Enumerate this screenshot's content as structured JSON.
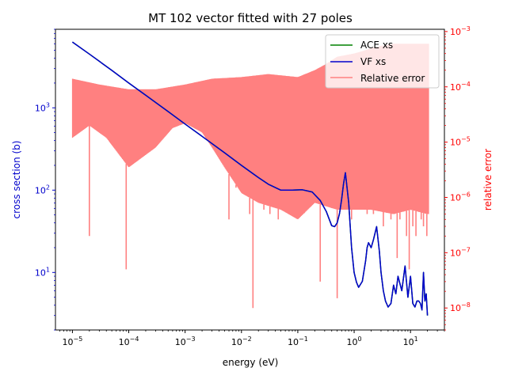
{
  "chart_data": {
    "type": "line",
    "title": "MT 102 vector fitted with 27 poles",
    "xlabel": "energy (eV)",
    "ylabel": "cross section (b)",
    "ylabel_right": "relative error",
    "xscale": "log",
    "yscale": "log",
    "yscale_right": "log",
    "xlim": [
      5e-06,
      40
    ],
    "ylim": [
      2.0,
      9000
    ],
    "ylim_right": [
      4e-09,
      0.0011
    ],
    "x_ticks": [
      {
        "value": 1e-05,
        "base": "10",
        "exp": "−5"
      },
      {
        "value": 0.0001,
        "base": "10",
        "exp": "−4"
      },
      {
        "value": 0.001,
        "base": "10",
        "exp": "−3"
      },
      {
        "value": 0.01,
        "base": "10",
        "exp": "−2"
      },
      {
        "value": 0.1,
        "base": "10",
        "exp": "−1"
      },
      {
        "value": 1,
        "base": "10",
        "exp": "0"
      },
      {
        "value": 10,
        "base": "10",
        "exp": "1"
      }
    ],
    "y_ticks": [
      {
        "value": 10,
        "base": "10",
        "exp": "1"
      },
      {
        "value": 100,
        "base": "10",
        "exp": "2"
      },
      {
        "value": 1000,
        "base": "10",
        "exp": "3"
      }
    ],
    "y_ticks_right": [
      {
        "value": 1e-08,
        "base": "10",
        "exp": "−8"
      },
      {
        "value": 1e-07,
        "base": "10",
        "exp": "−7"
      },
      {
        "value": 1e-06,
        "base": "10",
        "exp": "−6"
      },
      {
        "value": 1e-05,
        "base": "10",
        "exp": "−5"
      },
      {
        "value": 0.0001,
        "base": "10",
        "exp": "−4"
      },
      {
        "value": 0.001,
        "base": "10",
        "exp": "−3"
      }
    ],
    "legend_position": "top-right",
    "series": [
      {
        "name": "ACE xs",
        "axis": "left",
        "color": "#008000",
        "x": [
          1e-05,
          2e-05,
          5e-05,
          0.0001,
          0.0002,
          0.0005,
          0.001,
          0.002,
          0.005,
          0.01,
          0.02,
          0.03,
          0.05,
          0.08,
          0.12,
          0.18,
          0.25,
          0.32,
          0.4,
          0.45,
          0.5,
          0.55,
          0.6,
          0.65,
          0.7,
          0.8,
          0.9,
          1.0,
          1.1,
          1.2,
          1.4,
          1.6,
          1.7,
          1.8,
          2.0,
          2.2,
          2.5,
          2.8,
          3.0,
          3.3,
          3.6,
          4.0,
          4.5,
          5.0,
          5.5,
          6.0,
          7.0,
          8.0,
          9.0,
          10.0,
          11.0,
          12.0,
          13.0,
          14.0,
          15.0,
          16.0,
          17.0,
          18.0,
          19.0,
          20.0
        ],
        "y": [
          6300,
          4500,
          2850,
          2000,
          1420,
          900,
          635,
          450,
          285,
          200,
          142,
          118,
          100,
          100,
          101,
          95,
          75,
          55,
          37,
          36,
          40,
          52,
          78,
          120,
          163,
          70,
          20,
          10,
          7.6,
          6.6,
          7.8,
          14,
          20,
          23,
          20,
          25,
          36,
          18,
          10,
          6,
          4.5,
          3.8,
          4.2,
          7,
          5.5,
          9,
          6,
          12,
          5,
          9,
          4.2,
          3.8,
          4.5,
          4.5,
          4.2,
          3.5,
          10,
          4.5,
          5.5,
          3.0
        ]
      },
      {
        "name": "VF xs",
        "axis": "left",
        "color": "#0000cc",
        "x": [
          1e-05,
          2e-05,
          5e-05,
          0.0001,
          0.0002,
          0.0005,
          0.001,
          0.002,
          0.005,
          0.01,
          0.02,
          0.03,
          0.05,
          0.08,
          0.12,
          0.18,
          0.25,
          0.32,
          0.4,
          0.45,
          0.5,
          0.55,
          0.6,
          0.65,
          0.7,
          0.8,
          0.9,
          1.0,
          1.1,
          1.2,
          1.4,
          1.6,
          1.7,
          1.8,
          2.0,
          2.2,
          2.5,
          2.8,
          3.0,
          3.3,
          3.6,
          4.0,
          4.5,
          5.0,
          5.5,
          6.0,
          7.0,
          8.0,
          9.0,
          10.0,
          11.0,
          12.0,
          13.0,
          14.0,
          15.0,
          16.0,
          17.0,
          18.0,
          19.0,
          20.0
        ],
        "y": [
          6300,
          4500,
          2850,
          2000,
          1420,
          900,
          635,
          450,
          285,
          200,
          142,
          118,
          100,
          100,
          101,
          95,
          75,
          55,
          37,
          36,
          40,
          52,
          78,
          120,
          163,
          70,
          20,
          10,
          7.6,
          6.6,
          7.8,
          14,
          20,
          23,
          20,
          25,
          36,
          18,
          10,
          6,
          4.5,
          3.8,
          4.2,
          7,
          5.5,
          9,
          6,
          12,
          5,
          9,
          4.2,
          3.8,
          4.5,
          4.5,
          4.2,
          3.5,
          10,
          4.5,
          5.5,
          3.0
        ]
      },
      {
        "name": "Relative error",
        "axis": "right",
        "color": "#ff8080",
        "envelope_x": [
          1e-05,
          3e-05,
          0.0001,
          0.0003,
          0.001,
          0.003,
          0.01,
          0.03,
          0.1,
          0.2,
          0.3,
          0.5,
          1,
          1.5,
          2,
          3,
          5,
          8,
          10,
          15,
          20
        ],
        "envelope_y": [
          0.00014,
          0.00011,
          9e-05,
          9e-05,
          0.00011,
          0.00014,
          0.00015,
          0.00017,
          0.00015,
          0.0002,
          0.00025,
          0.00035,
          0.0004,
          0.00045,
          0.0005,
          0.00055,
          0.0006,
          0.0006,
          0.0006,
          0.0006,
          0.0006
        ],
        "floor_x": [
          1e-05,
          2e-05,
          4e-05,
          0.0001,
          0.0003,
          0.0006,
          0.001,
          0.002,
          0.003,
          0.005,
          0.01,
          0.02,
          0.05,
          0.1,
          0.2,
          0.5,
          1,
          2,
          5,
          10,
          20
        ],
        "floor_y": [
          1.2e-05,
          2e-05,
          1.2e-05,
          3.5e-06,
          8e-06,
          1.8e-05,
          2.2e-05,
          1.5e-05,
          8e-06,
          3.5e-06,
          1.2e-06,
          8e-07,
          6e-07,
          4e-07,
          8e-07,
          6e-07,
          6e-07,
          6e-07,
          5e-07,
          6e-07,
          5e-07
        ],
        "dips_x": [
          2e-05,
          9e-05,
          0.006,
          0.008,
          0.014,
          0.016,
          0.025,
          0.032,
          0.045,
          0.13,
          0.25,
          0.4,
          0.5,
          0.9,
          1.2,
          1.7,
          2.2,
          2.8,
          3.3,
          3.8,
          4.5,
          5.2,
          5.8,
          6.5,
          7.5,
          8.5,
          9.5,
          11,
          12.5,
          14,
          15.5,
          17,
          18.5,
          19.5,
          20.5
        ],
        "dips_y": [
          2e-07,
          5e-08,
          4e-07,
          1.5e-06,
          5e-07,
          1e-08,
          6e-07,
          5e-07,
          4e-07,
          1e-05,
          3e-08,
          7e-07,
          1.5e-08,
          4e-07,
          7e-07,
          5e-07,
          5e-07,
          6e-07,
          3e-07,
          6e-07,
          4e-07,
          5e-07,
          8e-08,
          4e-07,
          6e-07,
          2e-07,
          5e-08,
          3e-07,
          2e-07,
          6e-07,
          4e-07,
          3e-07,
          6e-07,
          2e-07,
          5e-07
        ]
      }
    ]
  }
}
